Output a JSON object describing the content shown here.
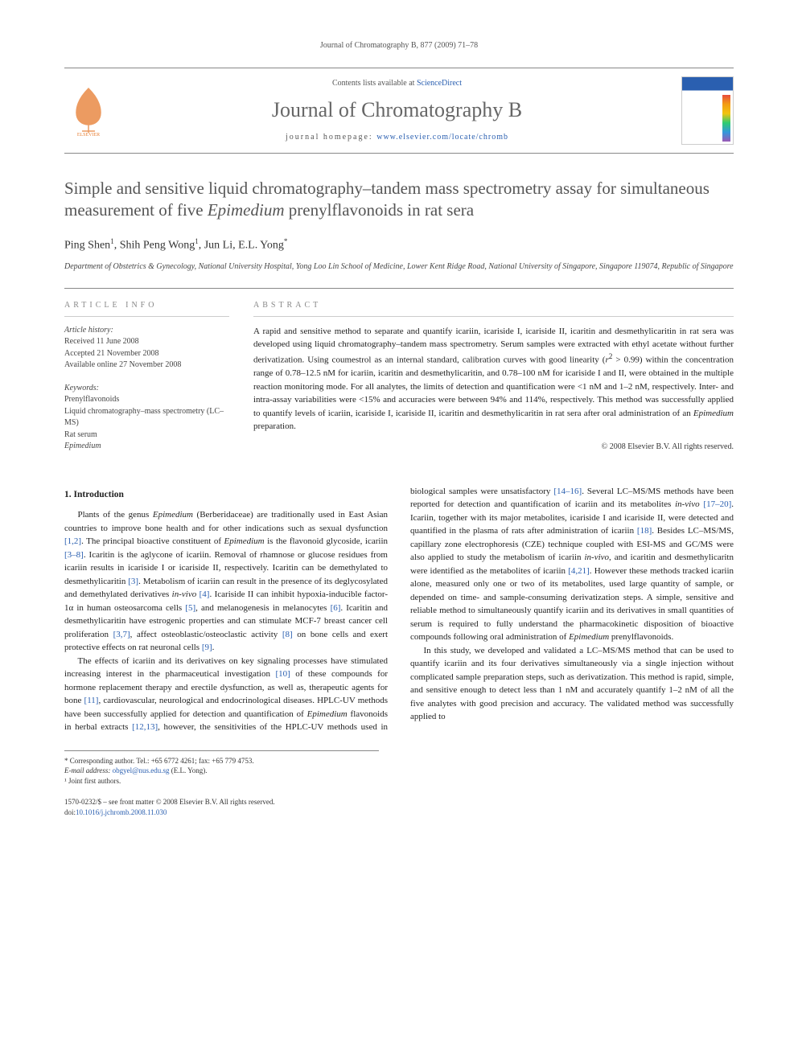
{
  "runningHeader": "Journal of Chromatography B, 877 (2009) 71–78",
  "masthead": {
    "contentsPrefix": "Contents lists available at ",
    "contentsLink": "ScienceDirect",
    "journalName": "Journal of Chromatography B",
    "homepagePrefix": "journal homepage: ",
    "homepageUrl": "www.elsevier.com/locate/chromb"
  },
  "article": {
    "titleHtml": "Simple and sensitive liquid chromatography–tandem mass spectrometry assay for simultaneous measurement of five <em>Epimedium</em> prenylflavonoids in rat sera",
    "authorsHtml": "Ping Shen<sup>1</sup>, Shih Peng Wong<sup>1</sup>, Jun Li, E.L. Yong<sup>*</sup>",
    "affiliation": "Department of Obstetrics & Gynecology, National University Hospital, Yong Loo Lin School of Medicine, Lower Kent Ridge Road, National University of Singapore, Singapore 119074, Republic of Singapore"
  },
  "articleInfo": {
    "heading": "ARTICLE INFO",
    "historyLabel": "Article history:",
    "received": "Received 11 June 2008",
    "accepted": "Accepted 21 November 2008",
    "online": "Available online 27 November 2008",
    "keywordsLabel": "Keywords:",
    "keywords": [
      "Prenylflavonoids",
      "Liquid chromatography–mass spectrometry (LC–MS)",
      "Rat serum"
    ],
    "keywordItalic": "Epimedium"
  },
  "abstract": {
    "heading": "ABSTRACT",
    "textHtml": "A rapid and sensitive method to separate and quantify icariin, icariside I, icariside II, icaritin and desmethylicaritin in rat sera was developed using liquid chromatography–tandem mass spectrometry. Serum samples were extracted with ethyl acetate without further derivatization. Using coumestrol as an internal standard, calibration curves with good linearity (<em>r</em><sup>2</sup> > 0.99) within the concentration range of 0.78–12.5 nM for icariin, icaritin and desmethylicaritin, and 0.78–100 nM for icariside I and II, were obtained in the multiple reaction monitoring mode. For all analytes, the limits of detection and quantification were <1 nM and 1–2 nM, respectively. Inter- and intra-assay variabilities were <15% and accuracies were between 94% and 114%, respectively. This method was successfully applied to quantify levels of icariin, icariside I, icariside II, icaritin and desmethylicaritin in rat sera after oral administration of an <em>Epimedium</em> preparation.",
    "copyright": "© 2008 Elsevier B.V. All rights reserved."
  },
  "body": {
    "sectionHeading": "1. Introduction",
    "p1Html": "Plants of the genus <em>Epimedium</em> (Berberidaceae) are traditionally used in East Asian countries to improve bone health and for other indications such as sexual dysfunction <span class=\"ref\">[1,2]</span>. The principal bioactive constituent of <em>Epimedium</em> is the flavonoid glycoside, icariin <span class=\"ref\">[3–8]</span>. Icaritin is the aglycone of icariin. Removal of rhamnose or glucose residues from icariin results in icariside I or icariside II, respectively. Icaritin can be demethylated to desmethylicaritin <span class=\"ref\">[3]</span>. Metabolism of icariin can result in the presence of its deglycosylated and demethylated derivatives <em>in-vivo</em> <span class=\"ref\">[4]</span>. Icariside II can inhibit hypoxia-inducible factor-1α in human osteosarcoma cells <span class=\"ref\">[5]</span>, and melanogenesis in melanocytes <span class=\"ref\">[6]</span>. Icaritin and desmethylicaritin have estrogenic properties and can stimulate MCF-7 breast cancer cell proliferation <span class=\"ref\">[3,7]</span>, affect osteoblastic/osteoclastic activity <span class=\"ref\">[8]</span> on bone cells and exert protective effects on rat neuronal cells <span class=\"ref\">[9]</span>.",
    "p2Html": "The effects of icariin and its derivatives on key signaling processes have stimulated increasing interest in the pharmaceutical investigation <span class=\"ref\">[10]</span> of these compounds for hormone replacement therapy and erectile dysfunction, as well as, therapeutic agents for bone <span class=\"ref\">[11]</span>, cardiovascular, neurological and endocrinological diseases. HPLC-UV methods have been successfully applied for detection and quantification of <em>Epimedium</em> flavonoids in herbal extracts <span class=\"ref\">[12,13]</span>, however, the sensitivities of the HPLC-UV methods used in biological samples were unsatisfactory <span class=\"ref\">[14–16]</span>. Several LC–MS/MS methods have been reported for detection and quantification of icariin and its metabolites <em>in-vivo</em> <span class=\"ref\">[17–20]</span>. Icariin, together with its major metabolites, icariside I and icariside II, were detected and quantified in the plasma of rats after administration of icariin <span class=\"ref\">[18]</span>. Besides LC–MS/MS, capillary zone electrophoresis (CZE) technique coupled with ESI-MS and GC/MS were also applied to study the metabolism of icariin <em>in-vivo</em>, and icaritin and desmethylicaritn were identified as the metabolites of icariin <span class=\"ref\">[4,21]</span>. However these methods tracked icariin alone, measured only one or two of its metabolites, used large quantity of sample, or depended on time- and sample-consuming derivatization steps. A simple, sensitive and reliable method to simultaneously quantify icariin and its derivatives in small quantities of serum is required to fully understand the pharmacokinetic disposition of bioactive compounds following oral administration of <em>Epimedium</em> prenylflavonoids.",
    "p3Html": "In this study, we developed and validated a LC–MS/MS method that can be used to quantify icariin and its four derivatives simultaneously via a single injection without complicated sample preparation steps, such as derivatization. This method is rapid, simple, and sensitive enough to detect less than 1 nM and accurately quantify 1–2 nM of all the five analytes with good precision and accuracy. The validated method was successfully applied to"
  },
  "footnotes": {
    "corresponding": "* Corresponding author. Tel.: +65 6772 4261; fax: +65 779 4753.",
    "emailLabel": "E-mail address: ",
    "email": "obgyel@nus.edu.sg",
    "emailSuffix": " (E.L. Yong).",
    "jointFirst": "¹ Joint first authors."
  },
  "bottom": {
    "line1": "1570-0232/$ – see front matter © 2008 Elsevier B.V. All rights reserved.",
    "doiLabel": "doi:",
    "doi": "10.1016/j.jchromb.2008.11.030"
  },
  "colors": {
    "link": "#2a5fb0",
    "text": "#333333",
    "heading": "#555555",
    "rule": "#888888",
    "elsevierOrange": "#e8833a"
  },
  "typography": {
    "bodyFont": "Georgia, 'Times New Roman', serif",
    "titleSize": 21,
    "journalNameSize": 26,
    "bodySize": 11,
    "infoSize": 10
  },
  "layout": {
    "pageWidth": 992,
    "pageHeight": 1323,
    "columnCount": 2,
    "columnGap": 28
  }
}
